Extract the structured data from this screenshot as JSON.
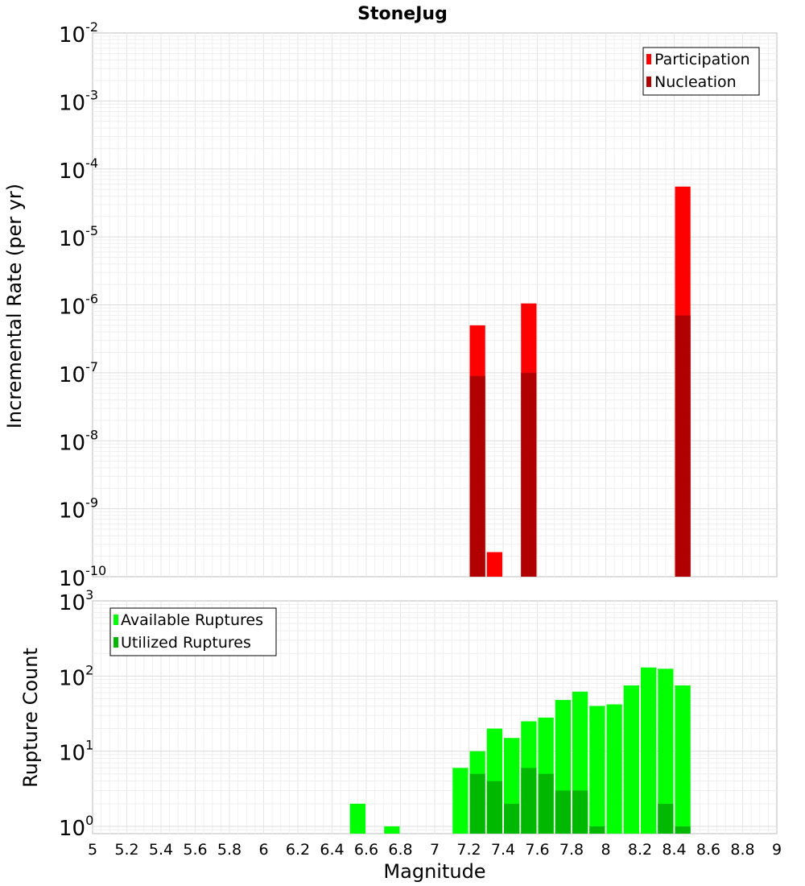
{
  "chart_data": [
    {
      "type": "bar",
      "title": "StoneJug",
      "xlabel": "",
      "ylabel": "Incremental Rate (per yr)",
      "yscale": "log",
      "ylim": [
        1e-10,
        0.01
      ],
      "xlim": [
        5,
        9
      ],
      "grid": true,
      "legend_position": "top-right",
      "y_ticks": [
        {
          "base": "10",
          "exp": "-2",
          "value": 0.01
        },
        {
          "base": "10",
          "exp": "-3",
          "value": 0.001
        },
        {
          "base": "10",
          "exp": "-4",
          "value": 0.0001
        },
        {
          "base": "10",
          "exp": "-5",
          "value": 1e-05
        },
        {
          "base": "10",
          "exp": "-6",
          "value": 1e-06
        },
        {
          "base": "10",
          "exp": "-7",
          "value": 1e-07
        },
        {
          "base": "10",
          "exp": "-8",
          "value": 1e-08
        },
        {
          "base": "10",
          "exp": "-9",
          "value": 1e-09
        },
        {
          "base": "10",
          "exp": "-10",
          "value": 1e-10
        }
      ],
      "series": [
        {
          "name": "Participation",
          "color": "#ff0000",
          "x": [
            7.25,
            7.35,
            7.55,
            8.45
          ],
          "values": [
            5e-07,
            2.3e-10,
            1.05e-06,
            5.5e-05
          ]
        },
        {
          "name": "Nucleation",
          "color": "#b00000",
          "x": [
            7.25,
            7.55,
            8.45
          ],
          "values": [
            9e-08,
            1e-07,
            7e-07
          ]
        }
      ]
    },
    {
      "type": "bar",
      "title": "",
      "xlabel": "Magnitude",
      "ylabel": "Rupture Count",
      "yscale": "log",
      "ylim": [
        0.8,
        1000
      ],
      "xlim": [
        5,
        9
      ],
      "grid": true,
      "legend_position": "top-left",
      "x_ticks": [
        "5",
        "5.2",
        "5.4",
        "5.6",
        "5.8",
        "6",
        "6.2",
        "6.4",
        "6.6",
        "6.8",
        "7",
        "7.2",
        "7.4",
        "7.6",
        "7.8",
        "8",
        "8.2",
        "8.4",
        "8.6",
        "8.8",
        "9"
      ],
      "y_ticks": [
        {
          "base": "10",
          "exp": "3",
          "value": 1000
        },
        {
          "base": "10",
          "exp": "2",
          "value": 100
        },
        {
          "base": "10",
          "exp": "1",
          "value": 10
        },
        {
          "base": "10",
          "exp": "0",
          "value": 1
        }
      ],
      "series": [
        {
          "name": "Available Ruptures",
          "color": "#00ff00",
          "x": [
            6.55,
            6.75,
            7.15,
            7.25,
            7.35,
            7.45,
            7.55,
            7.65,
            7.75,
            7.85,
            7.95,
            8.05,
            8.15,
            8.25,
            8.35,
            8.45
          ],
          "values": [
            2,
            1,
            6,
            10,
            20,
            15,
            25,
            28,
            48,
            62,
            40,
            42,
            75,
            130,
            125,
            75
          ]
        },
        {
          "name": "Utilized Ruptures",
          "color": "#00b800",
          "x": [
            7.25,
            7.35,
            7.45,
            7.55,
            7.65,
            7.75,
            7.85,
            7.95,
            8.35,
            8.45
          ],
          "values": [
            5,
            4,
            2,
            6,
            5,
            3,
            3,
            1,
            2,
            1
          ]
        }
      ]
    }
  ]
}
